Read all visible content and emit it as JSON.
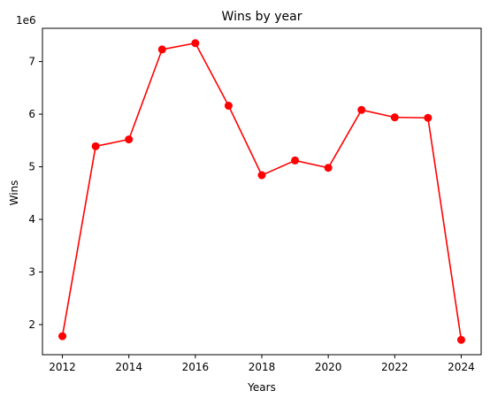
{
  "chart_data": {
    "type": "line",
    "title": "Wins by year",
    "xlabel": "Years",
    "ylabel": "Wins",
    "y_offset_label": "1e6",
    "x": [
      2012,
      2013,
      2014,
      2015,
      2016,
      2017,
      2018,
      2019,
      2020,
      2021,
      2022,
      2023,
      2024
    ],
    "series": [
      {
        "values": [
          1780000,
          5390000,
          5520000,
          7230000,
          7350000,
          6160000,
          4840000,
          5120000,
          4980000,
          6080000,
          5940000,
          5930000,
          1710000
        ],
        "color": "#ff0000",
        "marker": "circle"
      }
    ],
    "xlim": [
      2011.4,
      2024.6
    ],
    "ylim": [
      1428000,
      7632000
    ],
    "x_ticks": [
      2012,
      2014,
      2016,
      2018,
      2020,
      2022,
      2024
    ],
    "x_tick_labels": [
      "2012",
      "2014",
      "2016",
      "2018",
      "2020",
      "2022",
      "2024"
    ],
    "y_ticks": [
      2000000,
      3000000,
      4000000,
      5000000,
      6000000,
      7000000
    ],
    "y_tick_labels": [
      "2",
      "3",
      "4",
      "5",
      "6",
      "7"
    ],
    "grid": false,
    "legend": "none"
  }
}
